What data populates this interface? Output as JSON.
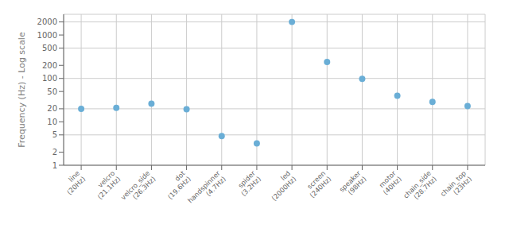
{
  "chart_data": {
    "type": "scatter",
    "categories": [
      "line\n(20Hz)",
      "velcro\n(21.1Hz)",
      "velcro_side\n(26.3Hz)",
      "dot\n(19.6Hz)",
      "handspinner\n(4.7Hz)",
      "spider\n(3.2Hz)",
      "led\n(2000Hz)",
      "screen\n(240Hz)",
      "speaker\n(98Hz)",
      "motor\n(40Hz)",
      "chain_side\n(28.7Hz)",
      "chain_top\n(23Hz)"
    ],
    "values": [
      20.0,
      21.1,
      26.3,
      19.6,
      4.7,
      3.2,
      2000.0,
      240.0,
      98.0,
      40.0,
      28.7,
      23.0
    ],
    "ylabel": "Frequency (Hz) - Log scale",
    "color": "#6aaed6",
    "log": "y",
    "ylim": [
      1,
      3000
    ],
    "yticks": [
      1,
      2,
      5,
      10,
      20,
      50,
      100,
      200,
      500,
      1000,
      2000
    ],
    "grid": true
  }
}
